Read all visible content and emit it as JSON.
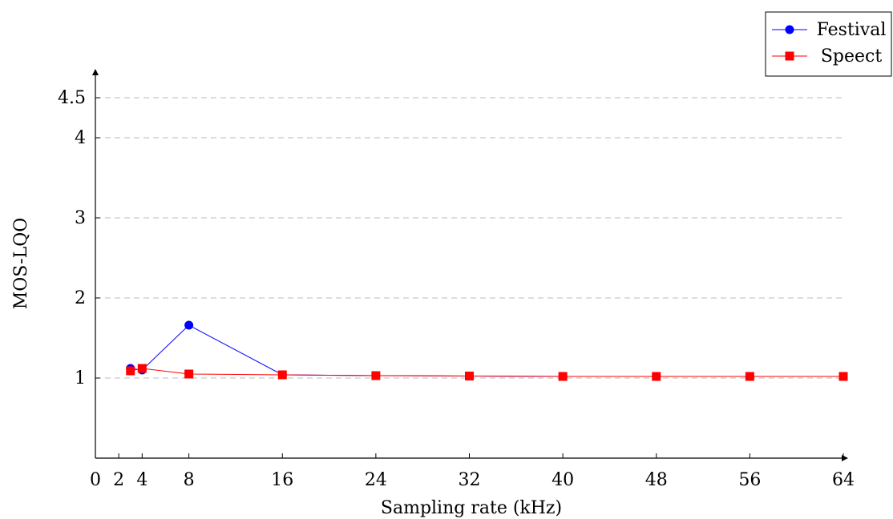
{
  "chart_data": {
    "type": "line",
    "xlabel": "Sampling rate (kHz)",
    "ylabel": "MOS-LQO",
    "xlim": [
      0,
      64
    ],
    "ylim": [
      0,
      4.8
    ],
    "xticks": [
      0,
      2,
      4,
      8,
      16,
      24,
      32,
      40,
      48,
      56,
      64
    ],
    "yticks": [
      1,
      2,
      3,
      4,
      4.5
    ],
    "grid": "horizontal dashed",
    "legend_position": "top-right",
    "series": [
      {
        "name": "Festival",
        "color": "#0000ff",
        "marker": "circle",
        "x": [
          3,
          4,
          8,
          16,
          24,
          32,
          40,
          48,
          56,
          64
        ],
        "y": [
          1.12,
          1.1,
          1.66,
          1.04,
          1.03,
          1.025,
          1.02,
          1.02,
          1.02,
          1.02
        ]
      },
      {
        "name": "Speect",
        "color": "#ff0000",
        "marker": "square",
        "x": [
          3,
          4,
          8,
          16,
          24,
          32,
          40,
          48,
          56,
          64
        ],
        "y": [
          1.09,
          1.12,
          1.05,
          1.04,
          1.03,
          1.025,
          1.02,
          1.02,
          1.02,
          1.02
        ]
      }
    ]
  }
}
